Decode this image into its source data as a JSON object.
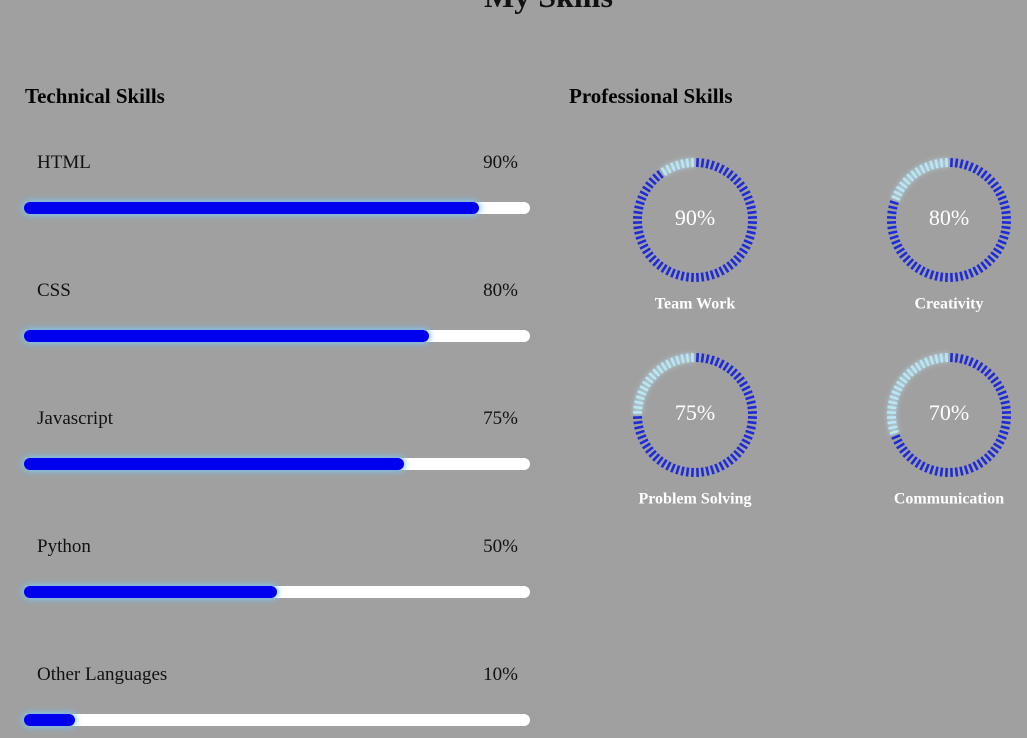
{
  "page_title": "My Skills",
  "technical": {
    "heading": "Technical Skills",
    "skills": [
      {
        "name": "HTML",
        "value": 90,
        "label": "90%"
      },
      {
        "name": "CSS",
        "value": 80,
        "label": "80%"
      },
      {
        "name": "Javascript",
        "value": 75,
        "label": "75%"
      },
      {
        "name": "Python",
        "value": 50,
        "label": "50%"
      },
      {
        "name": "Other Languages",
        "value": 10,
        "label": "10%"
      }
    ]
  },
  "professional": {
    "heading": "Professional Skills",
    "skills": [
      {
        "name": "Team Work",
        "value": 90,
        "label": "90%"
      },
      {
        "name": "Creativity",
        "value": 80,
        "label": "80%"
      },
      {
        "name": "Problem Solving",
        "value": 75,
        "label": "75%"
      },
      {
        "name": "Communication",
        "value": 70,
        "label": "70%"
      }
    ]
  }
}
